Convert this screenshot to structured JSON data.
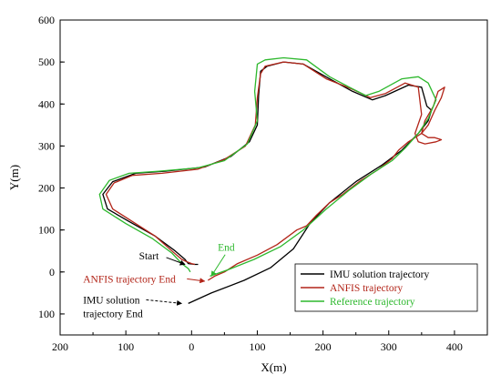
{
  "chart_data": {
    "type": "line",
    "xlabel": "X(m)",
    "ylabel": "Y(m)",
    "xlim": [
      -200,
      450
    ],
    "ylim": [
      -150,
      600
    ],
    "x_ticks": [
      -200,
      -100,
      0,
      100,
      200,
      300,
      400
    ],
    "x_tick_labels": [
      "200",
      "100",
      "0",
      "100",
      "200",
      "300",
      "400"
    ],
    "y_ticks": [
      -100,
      0,
      100,
      200,
      300,
      400,
      500,
      600
    ],
    "y_tick_labels": [
      "100",
      "0",
      "100",
      "200",
      "300",
      "400",
      "500",
      "600"
    ],
    "grid": false,
    "legend_position": "bottom-right",
    "series": [
      {
        "name": "IMU solution trajectory",
        "color": "#000000",
        "points": [
          [
            -5,
            -75
          ],
          [
            30,
            -50
          ],
          [
            80,
            -20
          ],
          [
            120,
            10
          ],
          [
            155,
            55
          ],
          [
            180,
            115
          ],
          [
            210,
            165
          ],
          [
            250,
            215
          ],
          [
            290,
            255
          ],
          [
            320,
            290
          ],
          [
            345,
            330
          ],
          [
            360,
            360
          ],
          [
            365,
            385
          ],
          [
            358,
            395
          ],
          [
            350,
            440
          ],
          [
            330,
            445
          ],
          [
            295,
            420
          ],
          [
            275,
            410
          ],
          [
            245,
            430
          ],
          [
            210,
            460
          ],
          [
            170,
            495
          ],
          [
            140,
            500
          ],
          [
            115,
            490
          ],
          [
            105,
            478
          ],
          [
            102,
            420
          ],
          [
            100,
            350
          ],
          [
            88,
            310
          ],
          [
            60,
            275
          ],
          [
            20,
            250
          ],
          [
            -40,
            240
          ],
          [
            -85,
            235
          ],
          [
            -120,
            215
          ],
          [
            -135,
            185
          ],
          [
            -128,
            150
          ],
          [
            -95,
            120
          ],
          [
            -55,
            85
          ],
          [
            -25,
            50
          ],
          [
            -10,
            30
          ],
          [
            -5,
            20
          ],
          [
            5,
            18
          ],
          [
            10,
            18
          ]
        ]
      },
      {
        "name": "ANFIS trajectory",
        "color": "#b22418",
        "points": [
          [
            25,
            -20
          ],
          [
            35,
            -10
          ],
          [
            50,
            0
          ],
          [
            70,
            20
          ],
          [
            100,
            40
          ],
          [
            130,
            65
          ],
          [
            160,
            100
          ],
          [
            175,
            110
          ],
          [
            190,
            135
          ],
          [
            210,
            165
          ],
          [
            230,
            185
          ],
          [
            255,
            215
          ],
          [
            285,
            245
          ],
          [
            305,
            270
          ],
          [
            315,
            290
          ],
          [
            330,
            310
          ],
          [
            350,
            330
          ],
          [
            360,
            350
          ],
          [
            370,
            385
          ],
          [
            380,
            415
          ],
          [
            385,
            440
          ],
          [
            375,
            430
          ],
          [
            368,
            395
          ],
          [
            355,
            360
          ],
          [
            350,
            330
          ],
          [
            360,
            320
          ],
          [
            370,
            320
          ],
          [
            380,
            315
          ],
          [
            372,
            310
          ],
          [
            355,
            305
          ],
          [
            345,
            310
          ],
          [
            340,
            330
          ],
          [
            350,
            375
          ],
          [
            345,
            440
          ],
          [
            325,
            450
          ],
          [
            295,
            425
          ],
          [
            272,
            415
          ],
          [
            245,
            435
          ],
          [
            205,
            460
          ],
          [
            170,
            495
          ],
          [
            140,
            500
          ],
          [
            112,
            490
          ],
          [
            105,
            472
          ],
          [
            100,
            415
          ],
          [
            97,
            350
          ],
          [
            82,
            300
          ],
          [
            50,
            268
          ],
          [
            10,
            245
          ],
          [
            -45,
            235
          ],
          [
            -90,
            230
          ],
          [
            -118,
            212
          ],
          [
            -130,
            185
          ],
          [
            -120,
            150
          ],
          [
            -90,
            120
          ],
          [
            -55,
            85
          ],
          [
            -30,
            50
          ],
          [
            -15,
            30
          ],
          [
            -8,
            25
          ],
          [
            0,
            20
          ],
          [
            5,
            18
          ]
        ]
      },
      {
        "name": "Reference trajectory",
        "color": "#2db82d",
        "points": [
          [
            28,
            -10
          ],
          [
            55,
            5
          ],
          [
            95,
            30
          ],
          [
            135,
            60
          ],
          [
            170,
            100
          ],
          [
            205,
            150
          ],
          [
            240,
            195
          ],
          [
            275,
            235
          ],
          [
            305,
            265
          ],
          [
            325,
            295
          ],
          [
            345,
            330
          ],
          [
            360,
            365
          ],
          [
            368,
            395
          ],
          [
            372,
            410
          ],
          [
            360,
            450
          ],
          [
            345,
            465
          ],
          [
            320,
            460
          ],
          [
            285,
            430
          ],
          [
            265,
            420
          ],
          [
            240,
            440
          ],
          [
            210,
            465
          ],
          [
            175,
            505
          ],
          [
            140,
            510
          ],
          [
            112,
            505
          ],
          [
            100,
            495
          ],
          [
            96,
            430
          ],
          [
            100,
            360
          ],
          [
            85,
            305
          ],
          [
            50,
            265
          ],
          [
            10,
            248
          ],
          [
            -50,
            240
          ],
          [
            -95,
            235
          ],
          [
            -125,
            218
          ],
          [
            -140,
            185
          ],
          [
            -135,
            150
          ],
          [
            -100,
            115
          ],
          [
            -60,
            80
          ],
          [
            -30,
            45
          ],
          [
            -15,
            20
          ],
          [
            -5,
            8
          ],
          [
            -2,
            0
          ]
        ]
      }
    ],
    "annotations": [
      {
        "text": "Start",
        "color": "#000000",
        "x": -80,
        "y": 30,
        "arrow_to": [
          -10,
          18
        ]
      },
      {
        "text": "End",
        "color": "#2db82d",
        "x": 40,
        "y": 50,
        "arrow_to": [
          30,
          -10
        ]
      },
      {
        "text": "ANFIS trajectory End",
        "color": "#b22418",
        "x": -165,
        "y": -25,
        "arrow_to": [
          20,
          -22
        ]
      },
      {
        "text": "IMU solution",
        "color": "#000000",
        "x": -165,
        "y": -75,
        "arrow_to": [
          -15,
          -75
        ]
      },
      {
        "text": "trajectory End",
        "color": "#000000",
        "x": -165,
        "y": -108
      }
    ]
  }
}
